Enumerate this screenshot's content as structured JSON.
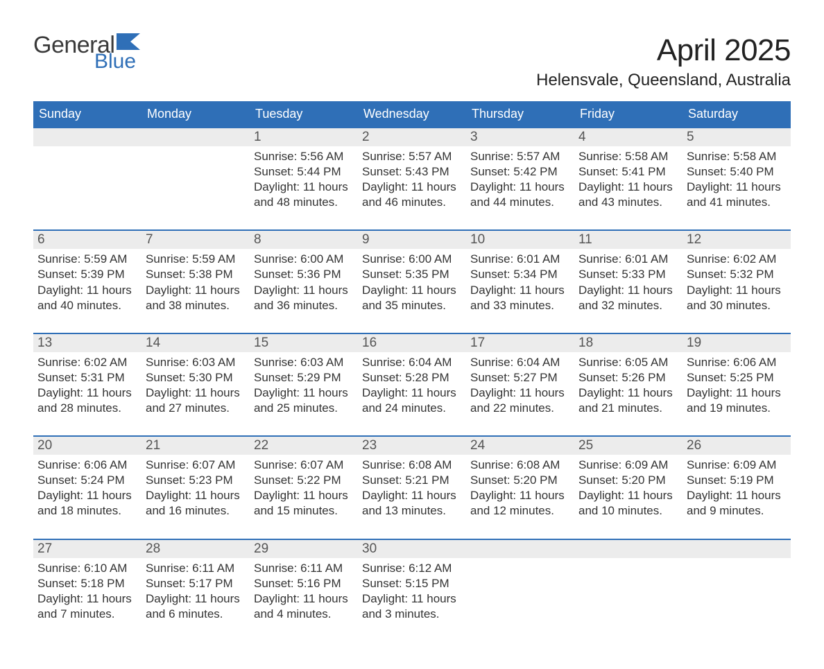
{
  "logo": {
    "general": "General",
    "blue": "Blue"
  },
  "header": {
    "month_title": "April 2025",
    "location": "Helensvale, Queensland, Australia"
  },
  "theme": {
    "accent": "#2f6fb7",
    "header_text": "#ffffff",
    "daynum_bg": "#ececec",
    "body_text": "#333333",
    "page_bg": "#ffffff"
  },
  "calendar": {
    "type": "calendar-month",
    "day_names": [
      "Sunday",
      "Monday",
      "Tuesday",
      "Wednesday",
      "Thursday",
      "Friday",
      "Saturday"
    ],
    "weeks": [
      {
        "cells": [
          {
            "num": "",
            "sunrise": "",
            "sunset": "",
            "daylight1": "",
            "daylight2": ""
          },
          {
            "num": "",
            "sunrise": "",
            "sunset": "",
            "daylight1": "",
            "daylight2": ""
          },
          {
            "num": "1",
            "sunrise": "Sunrise: 5:56 AM",
            "sunset": "Sunset: 5:44 PM",
            "daylight1": "Daylight: 11 hours",
            "daylight2": "and 48 minutes."
          },
          {
            "num": "2",
            "sunrise": "Sunrise: 5:57 AM",
            "sunset": "Sunset: 5:43 PM",
            "daylight1": "Daylight: 11 hours",
            "daylight2": "and 46 minutes."
          },
          {
            "num": "3",
            "sunrise": "Sunrise: 5:57 AM",
            "sunset": "Sunset: 5:42 PM",
            "daylight1": "Daylight: 11 hours",
            "daylight2": "and 44 minutes."
          },
          {
            "num": "4",
            "sunrise": "Sunrise: 5:58 AM",
            "sunset": "Sunset: 5:41 PM",
            "daylight1": "Daylight: 11 hours",
            "daylight2": "and 43 minutes."
          },
          {
            "num": "5",
            "sunrise": "Sunrise: 5:58 AM",
            "sunset": "Sunset: 5:40 PM",
            "daylight1": "Daylight: 11 hours",
            "daylight2": "and 41 minutes."
          }
        ]
      },
      {
        "cells": [
          {
            "num": "6",
            "sunrise": "Sunrise: 5:59 AM",
            "sunset": "Sunset: 5:39 PM",
            "daylight1": "Daylight: 11 hours",
            "daylight2": "and 40 minutes."
          },
          {
            "num": "7",
            "sunrise": "Sunrise: 5:59 AM",
            "sunset": "Sunset: 5:38 PM",
            "daylight1": "Daylight: 11 hours",
            "daylight2": "and 38 minutes."
          },
          {
            "num": "8",
            "sunrise": "Sunrise: 6:00 AM",
            "sunset": "Sunset: 5:36 PM",
            "daylight1": "Daylight: 11 hours",
            "daylight2": "and 36 minutes."
          },
          {
            "num": "9",
            "sunrise": "Sunrise: 6:00 AM",
            "sunset": "Sunset: 5:35 PM",
            "daylight1": "Daylight: 11 hours",
            "daylight2": "and 35 minutes."
          },
          {
            "num": "10",
            "sunrise": "Sunrise: 6:01 AM",
            "sunset": "Sunset: 5:34 PM",
            "daylight1": "Daylight: 11 hours",
            "daylight2": "and 33 minutes."
          },
          {
            "num": "11",
            "sunrise": "Sunrise: 6:01 AM",
            "sunset": "Sunset: 5:33 PM",
            "daylight1": "Daylight: 11 hours",
            "daylight2": "and 32 minutes."
          },
          {
            "num": "12",
            "sunrise": "Sunrise: 6:02 AM",
            "sunset": "Sunset: 5:32 PM",
            "daylight1": "Daylight: 11 hours",
            "daylight2": "and 30 minutes."
          }
        ]
      },
      {
        "cells": [
          {
            "num": "13",
            "sunrise": "Sunrise: 6:02 AM",
            "sunset": "Sunset: 5:31 PM",
            "daylight1": "Daylight: 11 hours",
            "daylight2": "and 28 minutes."
          },
          {
            "num": "14",
            "sunrise": "Sunrise: 6:03 AM",
            "sunset": "Sunset: 5:30 PM",
            "daylight1": "Daylight: 11 hours",
            "daylight2": "and 27 minutes."
          },
          {
            "num": "15",
            "sunrise": "Sunrise: 6:03 AM",
            "sunset": "Sunset: 5:29 PM",
            "daylight1": "Daylight: 11 hours",
            "daylight2": "and 25 minutes."
          },
          {
            "num": "16",
            "sunrise": "Sunrise: 6:04 AM",
            "sunset": "Sunset: 5:28 PM",
            "daylight1": "Daylight: 11 hours",
            "daylight2": "and 24 minutes."
          },
          {
            "num": "17",
            "sunrise": "Sunrise: 6:04 AM",
            "sunset": "Sunset: 5:27 PM",
            "daylight1": "Daylight: 11 hours",
            "daylight2": "and 22 minutes."
          },
          {
            "num": "18",
            "sunrise": "Sunrise: 6:05 AM",
            "sunset": "Sunset: 5:26 PM",
            "daylight1": "Daylight: 11 hours",
            "daylight2": "and 21 minutes."
          },
          {
            "num": "19",
            "sunrise": "Sunrise: 6:06 AM",
            "sunset": "Sunset: 5:25 PM",
            "daylight1": "Daylight: 11 hours",
            "daylight2": "and 19 minutes."
          }
        ]
      },
      {
        "cells": [
          {
            "num": "20",
            "sunrise": "Sunrise: 6:06 AM",
            "sunset": "Sunset: 5:24 PM",
            "daylight1": "Daylight: 11 hours",
            "daylight2": "and 18 minutes."
          },
          {
            "num": "21",
            "sunrise": "Sunrise: 6:07 AM",
            "sunset": "Sunset: 5:23 PM",
            "daylight1": "Daylight: 11 hours",
            "daylight2": "and 16 minutes."
          },
          {
            "num": "22",
            "sunrise": "Sunrise: 6:07 AM",
            "sunset": "Sunset: 5:22 PM",
            "daylight1": "Daylight: 11 hours",
            "daylight2": "and 15 minutes."
          },
          {
            "num": "23",
            "sunrise": "Sunrise: 6:08 AM",
            "sunset": "Sunset: 5:21 PM",
            "daylight1": "Daylight: 11 hours",
            "daylight2": "and 13 minutes."
          },
          {
            "num": "24",
            "sunrise": "Sunrise: 6:08 AM",
            "sunset": "Sunset: 5:20 PM",
            "daylight1": "Daylight: 11 hours",
            "daylight2": "and 12 minutes."
          },
          {
            "num": "25",
            "sunrise": "Sunrise: 6:09 AM",
            "sunset": "Sunset: 5:20 PM",
            "daylight1": "Daylight: 11 hours",
            "daylight2": "and 10 minutes."
          },
          {
            "num": "26",
            "sunrise": "Sunrise: 6:09 AM",
            "sunset": "Sunset: 5:19 PM",
            "daylight1": "Daylight: 11 hours",
            "daylight2": "and 9 minutes."
          }
        ]
      },
      {
        "cells": [
          {
            "num": "27",
            "sunrise": "Sunrise: 6:10 AM",
            "sunset": "Sunset: 5:18 PM",
            "daylight1": "Daylight: 11 hours",
            "daylight2": "and 7 minutes."
          },
          {
            "num": "28",
            "sunrise": "Sunrise: 6:11 AM",
            "sunset": "Sunset: 5:17 PM",
            "daylight1": "Daylight: 11 hours",
            "daylight2": "and 6 minutes."
          },
          {
            "num": "29",
            "sunrise": "Sunrise: 6:11 AM",
            "sunset": "Sunset: 5:16 PM",
            "daylight1": "Daylight: 11 hours",
            "daylight2": "and 4 minutes."
          },
          {
            "num": "30",
            "sunrise": "Sunrise: 6:12 AM",
            "sunset": "Sunset: 5:15 PM",
            "daylight1": "Daylight: 11 hours",
            "daylight2": "and 3 minutes."
          },
          {
            "num": "",
            "sunrise": "",
            "sunset": "",
            "daylight1": "",
            "daylight2": ""
          },
          {
            "num": "",
            "sunrise": "",
            "sunset": "",
            "daylight1": "",
            "daylight2": ""
          },
          {
            "num": "",
            "sunrise": "",
            "sunset": "",
            "daylight1": "",
            "daylight2": ""
          }
        ]
      }
    ]
  }
}
